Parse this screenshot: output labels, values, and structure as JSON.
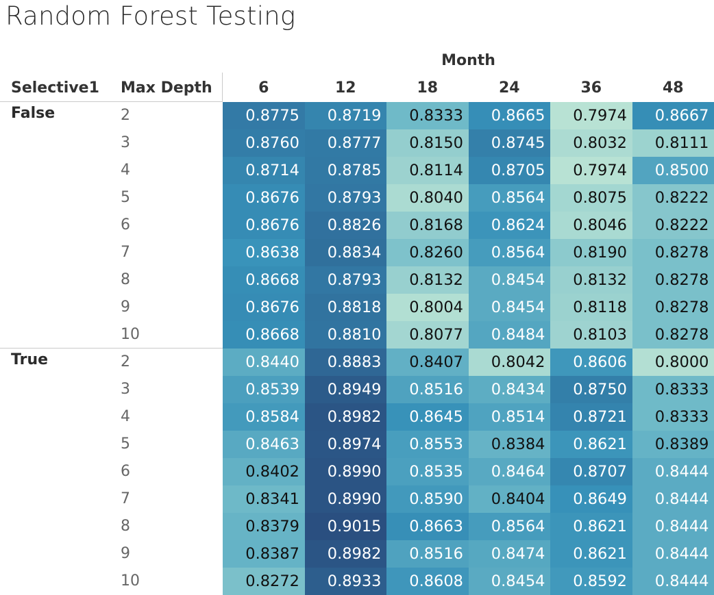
{
  "title": "Random Forest Testing",
  "column_headers": {
    "selective": "Selective1",
    "max_depth": "Max Depth",
    "month": "Month"
  },
  "chart_data": {
    "type": "heatmap",
    "title": "Random Forest Testing",
    "x_label": "Month",
    "months": [
      "6",
      "12",
      "18",
      "24",
      "36",
      "48"
    ],
    "color_scale": {
      "low": "#b8e2d4",
      "high": "#2a4f80"
    },
    "groups": [
      {
        "label": "False",
        "rows": [
          {
            "depth": "2",
            "values": [
              "0.8775",
              "0.8719",
              "0.8333",
              "0.8665",
              "0.7974",
              "0.8667"
            ]
          },
          {
            "depth": "3",
            "values": [
              "0.8760",
              "0.8777",
              "0.8150",
              "0.8745",
              "0.8032",
              "0.8111"
            ]
          },
          {
            "depth": "4",
            "values": [
              "0.8714",
              "0.8785",
              "0.8114",
              "0.8705",
              "0.7974",
              "0.8500"
            ]
          },
          {
            "depth": "5",
            "values": [
              "0.8676",
              "0.8793",
              "0.8040",
              "0.8564",
              "0.8075",
              "0.8222"
            ]
          },
          {
            "depth": "6",
            "values": [
              "0.8676",
              "0.8826",
              "0.8168",
              "0.8624",
              "0.8046",
              "0.8222"
            ]
          },
          {
            "depth": "7",
            "values": [
              "0.8638",
              "0.8834",
              "0.8260",
              "0.8564",
              "0.8190",
              "0.8278"
            ]
          },
          {
            "depth": "8",
            "values": [
              "0.8668",
              "0.8793",
              "0.8132",
              "0.8454",
              "0.8132",
              "0.8278"
            ]
          },
          {
            "depth": "9",
            "values": [
              "0.8676",
              "0.8818",
              "0.8004",
              "0.8454",
              "0.8118",
              "0.8278"
            ]
          },
          {
            "depth": "10",
            "values": [
              "0.8668",
              "0.8810",
              "0.8077",
              "0.8484",
              "0.8103",
              "0.8278"
            ]
          }
        ]
      },
      {
        "label": "True",
        "rows": [
          {
            "depth": "2",
            "values": [
              "0.8440",
              "0.8883",
              "0.8407",
              "0.8042",
              "0.8606",
              "0.8000"
            ]
          },
          {
            "depth": "3",
            "values": [
              "0.8539",
              "0.8949",
              "0.8516",
              "0.8434",
              "0.8750",
              "0.8333"
            ]
          },
          {
            "depth": "4",
            "values": [
              "0.8584",
              "0.8982",
              "0.8645",
              "0.8514",
              "0.8721",
              "0.8333"
            ]
          },
          {
            "depth": "5",
            "values": [
              "0.8463",
              "0.8974",
              "0.8553",
              "0.8384",
              "0.8621",
              "0.8389"
            ]
          },
          {
            "depth": "6",
            "values": [
              "0.8402",
              "0.8990",
              "0.8535",
              "0.8464",
              "0.8707",
              "0.8444"
            ]
          },
          {
            "depth": "7",
            "values": [
              "0.8341",
              "0.8990",
              "0.8590",
              "0.8404",
              "0.8649",
              "0.8444"
            ]
          },
          {
            "depth": "8",
            "values": [
              "0.8379",
              "0.9015",
              "0.8663",
              "0.8564",
              "0.8621",
              "0.8444"
            ]
          },
          {
            "depth": "9",
            "values": [
              "0.8387",
              "0.8982",
              "0.8516",
              "0.8474",
              "0.8621",
              "0.8444"
            ]
          },
          {
            "depth": "10",
            "values": [
              "0.8272",
              "0.8933",
              "0.8608",
              "0.8454",
              "0.8592",
              "0.8444"
            ]
          }
        ]
      }
    ]
  }
}
